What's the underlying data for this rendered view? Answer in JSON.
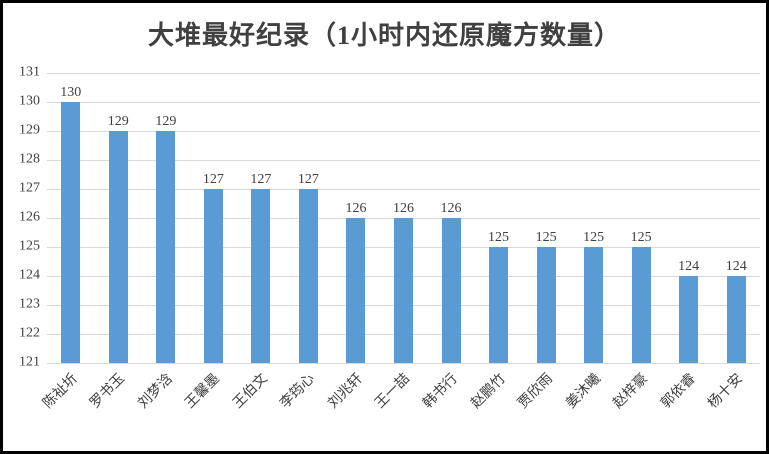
{
  "frame": {
    "background_color": "#ffffff",
    "border_color": "#000000"
  },
  "chart_data": {
    "type": "bar",
    "title": "大堆最好纪录（1小时内还原魔方数量）",
    "categories": [
      "陈祉圻",
      "罗书玉",
      "刘梦浛",
      "王馨墨",
      "王伯文",
      "李筠心",
      "刘兆轩",
      "王一喆",
      "韩书行",
      "赵鹏竹",
      "贾欣雨",
      "姜沐曦",
      "赵梓豪",
      "郭依睿",
      "杨十安"
    ],
    "values": [
      130,
      129,
      129,
      127,
      127,
      127,
      126,
      126,
      126,
      125,
      125,
      125,
      125,
      124,
      124
    ],
    "data_labels": [
      130,
      129,
      129,
      127,
      127,
      127,
      126,
      126,
      126,
      125,
      125,
      125,
      125,
      124,
      124
    ],
    "xlabel": "",
    "ylabel": "",
    "ylim": [
      121,
      131
    ],
    "yticks": [
      121,
      122,
      123,
      124,
      125,
      126,
      127,
      128,
      129,
      130,
      131
    ],
    "grid": "horizontal",
    "legend_position": "none",
    "bar_color": "#5b9bd5",
    "gridline_color": "#d9d9d9",
    "text_color": "#404040",
    "title_color": "#404040",
    "x_label_rotation_deg": 45
  }
}
